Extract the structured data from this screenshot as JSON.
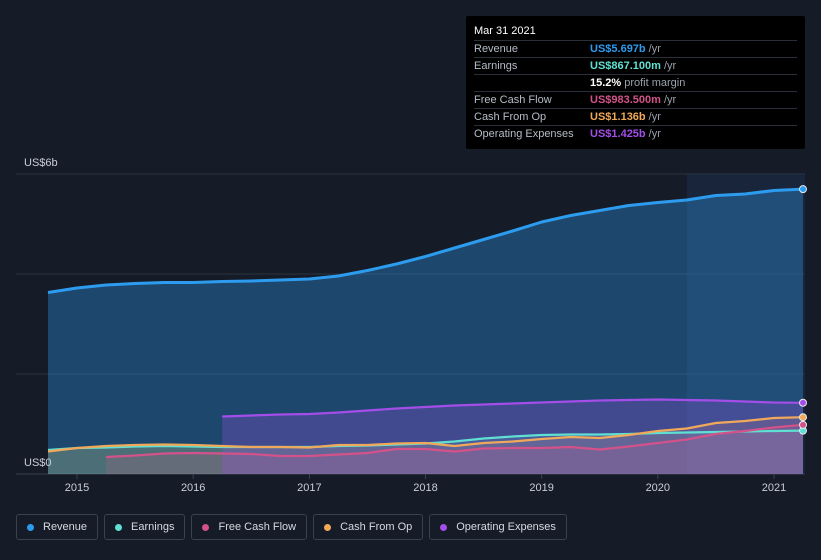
{
  "tooltip": {
    "date": "Mar 31 2021",
    "rows": [
      {
        "label": "Revenue",
        "value": "US$5.697b",
        "suffix": "/yr",
        "color": "#2d9cef"
      },
      {
        "label": "Earnings",
        "value": "US$867.100m",
        "suffix": "/yr",
        "color": "#5fe0d2"
      },
      {
        "label": "",
        "value": "15.2%",
        "suffix": "profit margin",
        "color": "#ffffff"
      },
      {
        "label": "Free Cash Flow",
        "value": "US$983.500m",
        "suffix": "/yr",
        "color": "#d4528a"
      },
      {
        "label": "Cash From Op",
        "value": "US$1.136b",
        "suffix": "/yr",
        "color": "#f0a95a"
      },
      {
        "label": "Operating Expenses",
        "value": "US$1.425b",
        "suffix": "/yr",
        "color": "#a34ee8"
      }
    ]
  },
  "legend": [
    {
      "label": "Revenue",
      "color": "#2d9cef"
    },
    {
      "label": "Earnings",
      "color": "#5fe0d2"
    },
    {
      "label": "Free Cash Flow",
      "color": "#d4528a"
    },
    {
      "label": "Cash From Op",
      "color": "#f0a95a"
    },
    {
      "label": "Operating Expenses",
      "color": "#a34ee8"
    }
  ],
  "chart_data": {
    "type": "area",
    "y_axis_top_label": "US$6b",
    "y_axis_bottom_label": "US$0",
    "ylim": [
      0,
      6
    ],
    "xlim": [
      2014.75,
      2021.25
    ],
    "x_ticks": [
      2015,
      2016,
      2017,
      2018,
      2019,
      2020,
      2021
    ],
    "x_tick_labels": [
      "2015",
      "2016",
      "2017",
      "2018",
      "2019",
      "2020",
      "2021"
    ],
    "highlight_from": 2020.25,
    "grid": true,
    "legend_position": "bottom",
    "series": [
      {
        "name": "Revenue",
        "color": "#2d9cef",
        "points": [
          [
            2014.75,
            3.63
          ],
          [
            2015.0,
            3.72
          ],
          [
            2015.25,
            3.78
          ],
          [
            2015.5,
            3.81
          ],
          [
            2015.75,
            3.83
          ],
          [
            2016.0,
            3.83
          ],
          [
            2016.25,
            3.85
          ],
          [
            2016.5,
            3.86
          ],
          [
            2016.75,
            3.88
          ],
          [
            2017.0,
            3.9
          ],
          [
            2017.25,
            3.96
          ],
          [
            2017.5,
            4.07
          ],
          [
            2017.75,
            4.2
          ],
          [
            2018.0,
            4.35
          ],
          [
            2018.25,
            4.52
          ],
          [
            2018.5,
            4.69
          ],
          [
            2018.75,
            4.86
          ],
          [
            2019.0,
            5.04
          ],
          [
            2019.25,
            5.17
          ],
          [
            2019.5,
            5.27
          ],
          [
            2019.75,
            5.37
          ],
          [
            2020.0,
            5.43
          ],
          [
            2020.25,
            5.48
          ],
          [
            2020.5,
            5.57
          ],
          [
            2020.75,
            5.6
          ],
          [
            2021.0,
            5.67
          ],
          [
            2021.25,
            5.697
          ]
        ]
      },
      {
        "name": "Earnings",
        "color": "#5fe0d2",
        "points": [
          [
            2014.75,
            0.48
          ],
          [
            2015.0,
            0.52
          ],
          [
            2015.25,
            0.53
          ],
          [
            2015.5,
            0.55
          ],
          [
            2015.75,
            0.56
          ],
          [
            2016.0,
            0.55
          ],
          [
            2016.25,
            0.54
          ],
          [
            2016.5,
            0.54
          ],
          [
            2016.75,
            0.54
          ],
          [
            2017.0,
            0.54
          ],
          [
            2017.25,
            0.56
          ],
          [
            2017.5,
            0.57
          ],
          [
            2017.75,
            0.59
          ],
          [
            2018.0,
            0.61
          ],
          [
            2018.25,
            0.65
          ],
          [
            2018.5,
            0.71
          ],
          [
            2018.75,
            0.75
          ],
          [
            2019.0,
            0.78
          ],
          [
            2019.25,
            0.79
          ],
          [
            2019.5,
            0.79
          ],
          [
            2019.75,
            0.8
          ],
          [
            2020.0,
            0.82
          ],
          [
            2020.25,
            0.83
          ],
          [
            2020.5,
            0.84
          ],
          [
            2020.75,
            0.85
          ],
          [
            2021.0,
            0.86
          ],
          [
            2021.25,
            0.867
          ]
        ]
      },
      {
        "name": "Free Cash Flow",
        "color": "#d4528a",
        "points": [
          [
            2015.25,
            0.34
          ],
          [
            2015.5,
            0.37
          ],
          [
            2015.75,
            0.41
          ],
          [
            2016.0,
            0.42
          ],
          [
            2016.25,
            0.41
          ],
          [
            2016.5,
            0.4
          ],
          [
            2016.75,
            0.36
          ],
          [
            2017.0,
            0.36
          ],
          [
            2017.25,
            0.39
          ],
          [
            2017.5,
            0.42
          ],
          [
            2017.75,
            0.5
          ],
          [
            2018.0,
            0.5
          ],
          [
            2018.25,
            0.45
          ],
          [
            2018.5,
            0.51
          ],
          [
            2018.75,
            0.52
          ],
          [
            2019.0,
            0.52
          ],
          [
            2019.25,
            0.54
          ],
          [
            2019.5,
            0.49
          ],
          [
            2019.75,
            0.55
          ],
          [
            2020.0,
            0.62
          ],
          [
            2020.25,
            0.69
          ],
          [
            2020.5,
            0.8
          ],
          [
            2020.75,
            0.86
          ],
          [
            2021.0,
            0.93
          ],
          [
            2021.25,
            0.9835
          ]
        ]
      },
      {
        "name": "Cash From Op",
        "color": "#f0a95a",
        "points": [
          [
            2014.75,
            0.45
          ],
          [
            2015.0,
            0.52
          ],
          [
            2015.25,
            0.56
          ],
          [
            2015.5,
            0.58
          ],
          [
            2015.75,
            0.59
          ],
          [
            2016.0,
            0.58
          ],
          [
            2016.25,
            0.56
          ],
          [
            2016.5,
            0.54
          ],
          [
            2016.75,
            0.54
          ],
          [
            2017.0,
            0.53
          ],
          [
            2017.25,
            0.58
          ],
          [
            2017.5,
            0.58
          ],
          [
            2017.75,
            0.61
          ],
          [
            2018.0,
            0.62
          ],
          [
            2018.25,
            0.56
          ],
          [
            2018.5,
            0.62
          ],
          [
            2018.75,
            0.65
          ],
          [
            2019.0,
            0.7
          ],
          [
            2019.25,
            0.74
          ],
          [
            2019.5,
            0.72
          ],
          [
            2019.75,
            0.78
          ],
          [
            2020.0,
            0.86
          ],
          [
            2020.25,
            0.91
          ],
          [
            2020.5,
            1.02
          ],
          [
            2020.75,
            1.06
          ],
          [
            2021.0,
            1.12
          ],
          [
            2021.25,
            1.136
          ]
        ]
      },
      {
        "name": "Operating Expenses",
        "color": "#a34ee8",
        "points": [
          [
            2016.25,
            1.15
          ],
          [
            2016.5,
            1.17
          ],
          [
            2016.75,
            1.19
          ],
          [
            2017.0,
            1.2
          ],
          [
            2017.25,
            1.23
          ],
          [
            2017.5,
            1.27
          ],
          [
            2017.75,
            1.31
          ],
          [
            2018.0,
            1.34
          ],
          [
            2018.25,
            1.37
          ],
          [
            2018.5,
            1.39
          ],
          [
            2018.75,
            1.41
          ],
          [
            2019.0,
            1.43
          ],
          [
            2019.25,
            1.45
          ],
          [
            2019.5,
            1.47
          ],
          [
            2019.75,
            1.48
          ],
          [
            2020.0,
            1.49
          ],
          [
            2020.25,
            1.48
          ],
          [
            2020.5,
            1.47
          ],
          [
            2020.75,
            1.45
          ],
          [
            2021.0,
            1.43
          ],
          [
            2021.25,
            1.425
          ]
        ]
      }
    ]
  }
}
